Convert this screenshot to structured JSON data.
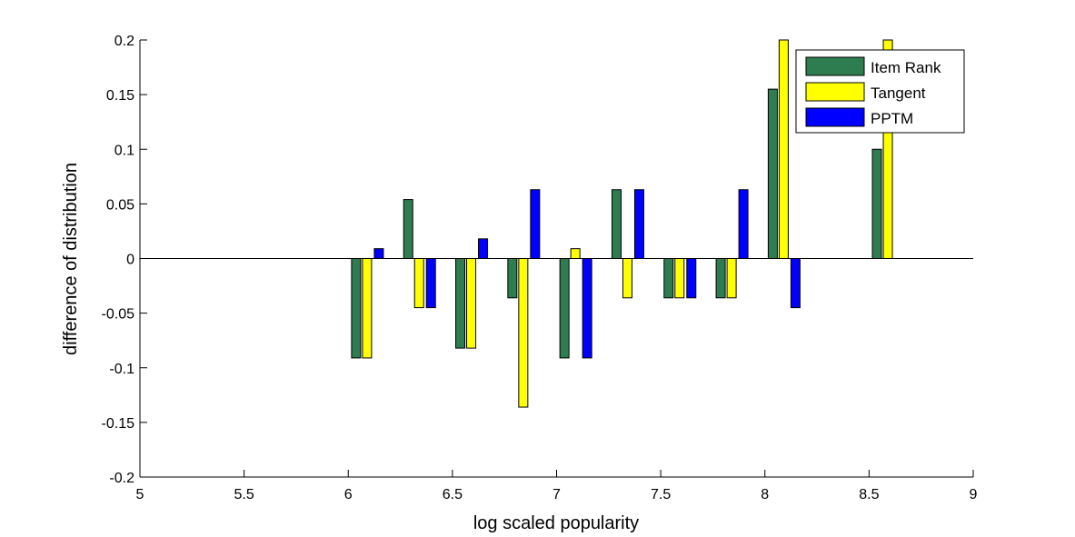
{
  "chart_data": {
    "type": "bar",
    "title": "",
    "xlabel": "log scaled popularity",
    "ylabel": "difference of distribution",
    "xlim": [
      5,
      9
    ],
    "ylim": [
      -0.2,
      0.2
    ],
    "xticks": [
      "5",
      "5.5",
      "6",
      "6.5",
      "7",
      "7.5",
      "8",
      "8.5",
      "9"
    ],
    "yticks": [
      "0.2",
      "0.15",
      "0.1",
      "0.05",
      "0",
      "-0.05",
      "-0.1",
      "-0.15",
      "-0.2"
    ],
    "x": [
      6.125,
      6.375,
      6.625,
      6.875,
      7.125,
      7.375,
      7.625,
      7.875,
      8.125,
      8.625
    ],
    "series": [
      {
        "name": "Item Rank",
        "color": "#2e7d50",
        "values": [
          -0.091,
          0.054,
          -0.082,
          -0.036,
          -0.091,
          0.063,
          -0.036,
          -0.036,
          0.155,
          0.1
        ]
      },
      {
        "name": "Tangent",
        "color": "#ffff00",
        "values": [
          -0.091,
          -0.045,
          -0.082,
          -0.136,
          0.009,
          -0.036,
          -0.036,
          -0.036,
          0.2,
          0.2
        ]
      },
      {
        "name": "PPTM",
        "color": "#0000ff",
        "values": [
          0.009,
          -0.045,
          0.018,
          0.063,
          -0.091,
          0.063,
          -0.036,
          0.063,
          -0.045,
          0
        ]
      }
    ],
    "legend_position": "top-right",
    "grid": false
  }
}
